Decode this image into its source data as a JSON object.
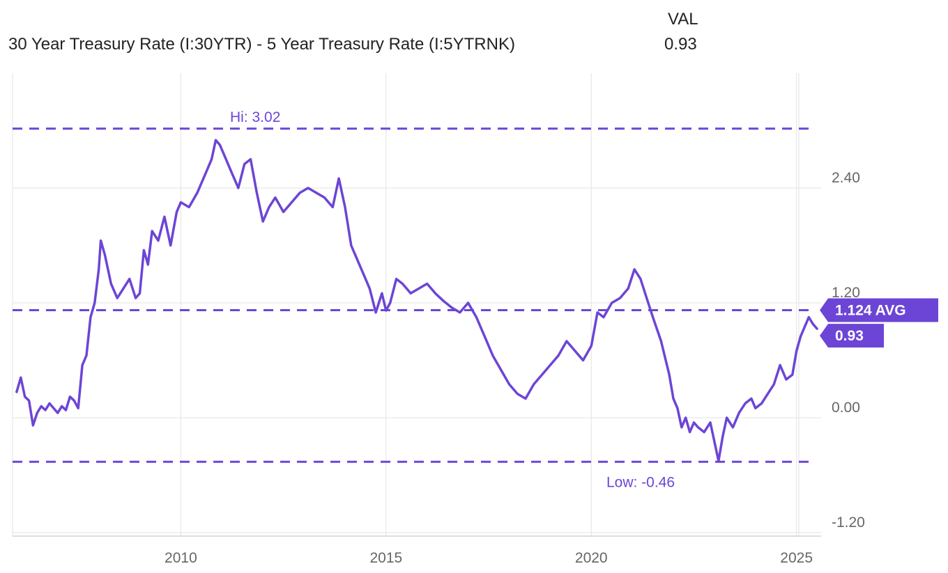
{
  "legend": {
    "column_header": "VAL",
    "series_name": "30 Year Treasury Rate (I:30YTR) - 5 Year Treasury Rate (I:5YTRNK)",
    "series_value": "0.93"
  },
  "colors": {
    "series": "#6c45d6",
    "grid": "#e3e3e3",
    "axis_text": "#666666"
  },
  "chart_data": {
    "type": "line",
    "title": "",
    "xlabel": "",
    "ylabel": "",
    "xlim": [
      2005.9,
      2025.6
    ],
    "ylim": [
      -1.2,
      3.6
    ],
    "x_ticks": [
      2010,
      2015,
      2020,
      2025
    ],
    "x_tick_labels": [
      "2010",
      "2015",
      "2020",
      "2025"
    ],
    "y_ticks": [
      2.4,
      1.2,
      0.0,
      -1.2
    ],
    "y_tick_labels": [
      "2.40",
      "1.20",
      "0.00",
      "-1.20"
    ],
    "grid": true,
    "y_axis_position": "right",
    "series": [
      {
        "name": "30 Year Treasury Rate (I:30YTR) - 5 Year Treasury Rate (I:5YTRNK)",
        "x": [
          2006.0,
          2006.1,
          2006.2,
          2006.3,
          2006.4,
          2006.5,
          2006.6,
          2006.7,
          2006.8,
          2006.9,
          2007.0,
          2007.1,
          2007.2,
          2007.3,
          2007.4,
          2007.5,
          2007.6,
          2007.7,
          2007.8,
          2007.9,
          2008.0,
          2008.05,
          2008.15,
          2008.3,
          2008.45,
          2008.6,
          2008.75,
          2008.9,
          2009.0,
          2009.1,
          2009.2,
          2009.3,
          2009.45,
          2009.6,
          2009.75,
          2009.9,
          2010.0,
          2010.2,
          2010.4,
          2010.6,
          2010.75,
          2010.85,
          2010.95,
          2011.1,
          2011.25,
          2011.4,
          2011.55,
          2011.7,
          2011.85,
          2012.0,
          2012.15,
          2012.3,
          2012.5,
          2012.7,
          2012.9,
          2013.1,
          2013.3,
          2013.5,
          2013.7,
          2013.85,
          2014.0,
          2014.15,
          2014.3,
          2014.45,
          2014.6,
          2014.75,
          2014.9,
          2015.0,
          2015.1,
          2015.25,
          2015.4,
          2015.6,
          2015.8,
          2016.0,
          2016.2,
          2016.4,
          2016.6,
          2016.8,
          2017.0,
          2017.2,
          2017.4,
          2017.6,
          2017.8,
          2018.0,
          2018.2,
          2018.4,
          2018.6,
          2018.8,
          2019.0,
          2019.2,
          2019.4,
          2019.6,
          2019.8,
          2020.0,
          2020.15,
          2020.3,
          2020.5,
          2020.7,
          2020.9,
          2021.05,
          2021.2,
          2021.35,
          2021.5,
          2021.7,
          2021.9,
          2022.0,
          2022.1,
          2022.2,
          2022.3,
          2022.4,
          2022.5,
          2022.6,
          2022.75,
          2022.9,
          2023.0,
          2023.1,
          2023.2,
          2023.3,
          2023.45,
          2023.6,
          2023.75,
          2023.9,
          2024.0,
          2024.15,
          2024.3,
          2024.45,
          2024.6,
          2024.75,
          2024.9,
          2025.0,
          2025.1,
          2025.2,
          2025.3,
          2025.4,
          2025.5
        ],
        "values": [
          0.27,
          0.42,
          0.22,
          0.18,
          -0.08,
          0.05,
          0.12,
          0.08,
          0.15,
          0.1,
          0.05,
          0.12,
          0.08,
          0.22,
          0.18,
          0.1,
          0.55,
          0.65,
          1.05,
          1.2,
          1.55,
          1.85,
          1.7,
          1.4,
          1.25,
          1.35,
          1.45,
          1.25,
          1.3,
          1.75,
          1.6,
          1.95,
          1.85,
          2.1,
          1.8,
          2.15,
          2.25,
          2.2,
          2.35,
          2.55,
          2.7,
          2.9,
          2.85,
          2.7,
          2.55,
          2.4,
          2.65,
          2.7,
          2.35,
          2.05,
          2.2,
          2.3,
          2.15,
          2.25,
          2.35,
          2.4,
          2.35,
          2.3,
          2.2,
          2.5,
          2.2,
          1.8,
          1.65,
          1.5,
          1.35,
          1.1,
          1.3,
          1.12,
          1.2,
          1.45,
          1.4,
          1.3,
          1.35,
          1.4,
          1.3,
          1.22,
          1.15,
          1.1,
          1.2,
          1.05,
          0.85,
          0.65,
          0.5,
          0.35,
          0.25,
          0.2,
          0.35,
          0.45,
          0.55,
          0.65,
          0.8,
          0.7,
          0.6,
          0.75,
          1.1,
          1.05,
          1.2,
          1.25,
          1.35,
          1.55,
          1.45,
          1.25,
          1.05,
          0.8,
          0.45,
          0.2,
          0.1,
          -0.1,
          0.0,
          -0.15,
          -0.05,
          -0.1,
          -0.15,
          -0.05,
          -0.25,
          -0.45,
          -0.2,
          0.0,
          -0.1,
          0.05,
          0.15,
          0.2,
          0.1,
          0.15,
          0.25,
          0.35,
          0.55,
          0.4,
          0.45,
          0.7,
          0.85,
          0.95,
          1.05,
          0.98,
          0.93
        ]
      }
    ],
    "reference_lines": [
      {
        "label": "Hi: 3.02",
        "value": 3.02
      },
      {
        "label": "1.124 AVG",
        "value": 1.124
      },
      {
        "label": "Low: -0.46",
        "value": -0.46
      }
    ],
    "last_value_label": "0.93",
    "last_value": 0.93
  }
}
